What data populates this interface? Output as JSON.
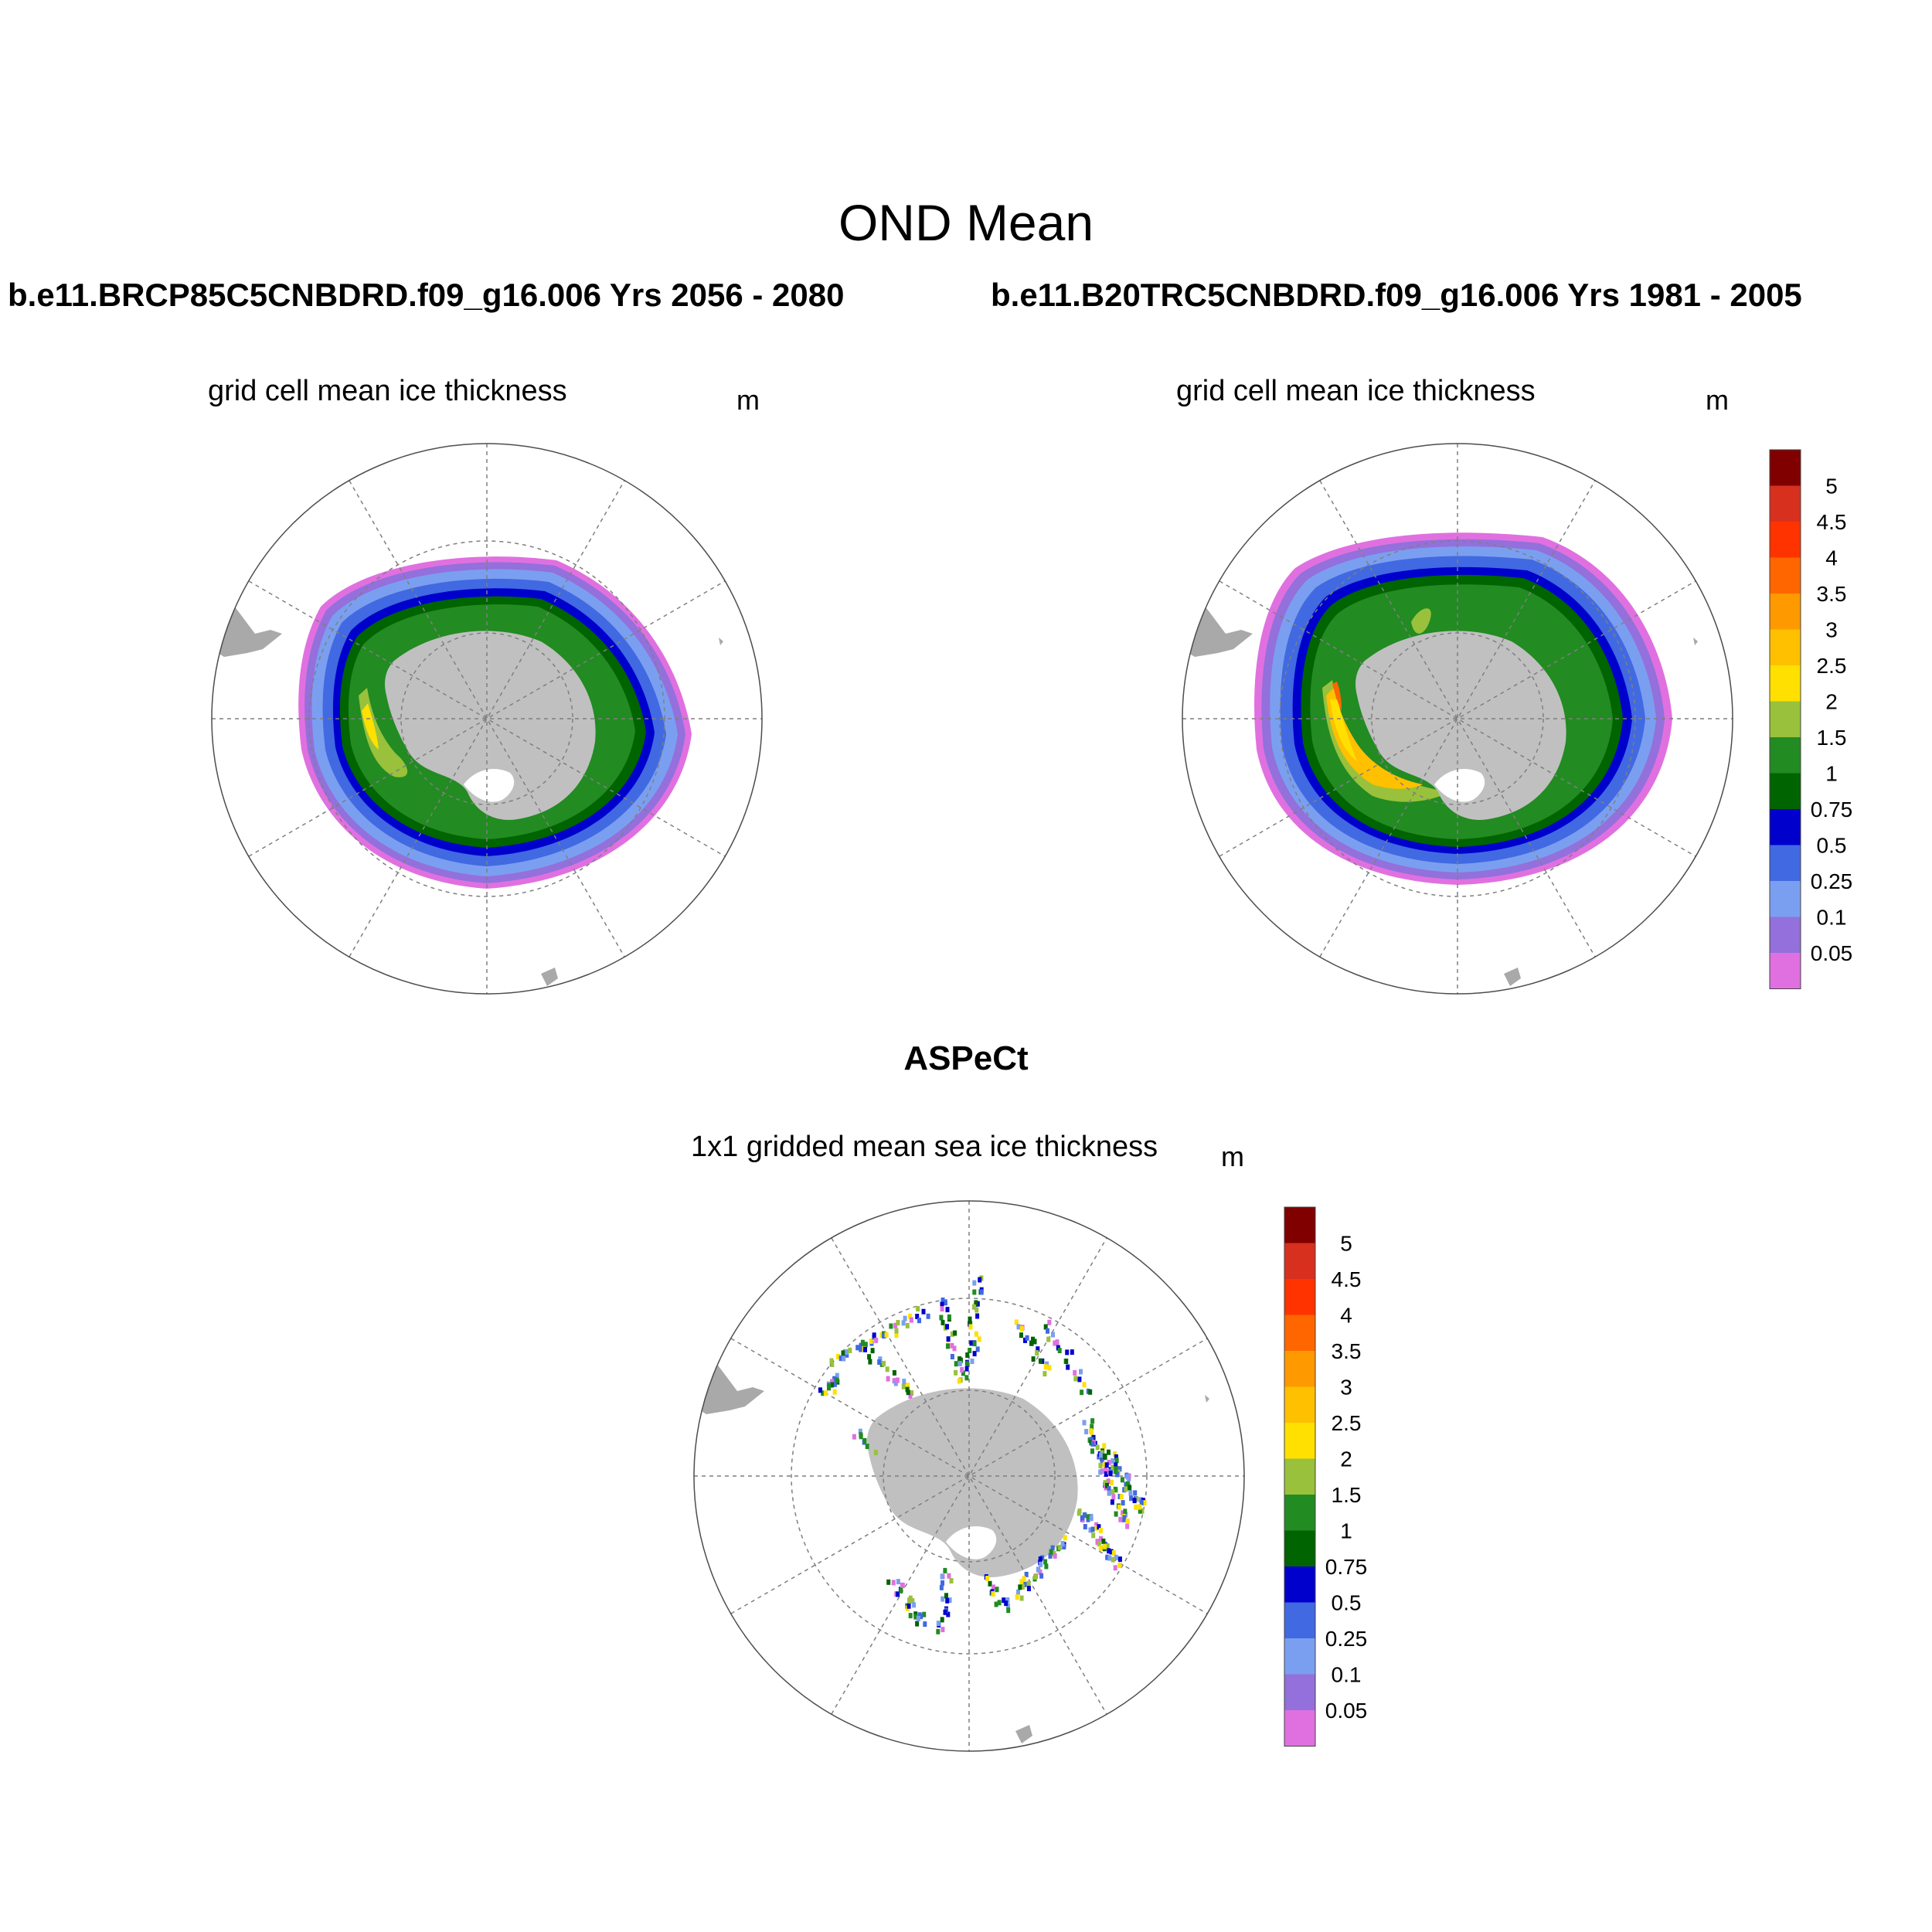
{
  "figure": {
    "title": "OND Mean",
    "case_left_title": "b.e11.BRCP85C5CNBDRD.f09_g16.006  Yrs 2056 - 2080",
    "case_right_title": "b.e11.B20TRC5CNBDRD.f09_g16.006  Yrs 1981 - 2005",
    "obs_title": "ASPeCt"
  },
  "panels": {
    "rcp85": {
      "title": "grid cell mean ice thickness",
      "units": "m"
    },
    "hist": {
      "title": "grid cell mean ice thickness",
      "units": "m"
    },
    "obs": {
      "title": "1x1 gridded mean sea ice thickness",
      "units": "m"
    }
  },
  "colorbar": {
    "labels": [
      "5",
      "4.5",
      "4",
      "3.5",
      "3",
      "2.5",
      "2",
      "1.5",
      "1",
      "0.75",
      "0.5",
      "0.25",
      "0.1",
      "0.05"
    ],
    "colors": [
      "#800000",
      "#d7301f",
      "#ff3300",
      "#ff6600",
      "#ff9900",
      "#ffc000",
      "#ffe000",
      "#99c13c",
      "#228b22",
      "#006400",
      "#0000cd",
      "#4169e1",
      "#7b9ff0",
      "#9370db",
      "#e070e0"
    ]
  },
  "chart_data": [
    {
      "type": "heatmap",
      "projection": "south polar stereographic",
      "title": "grid cell mean ice thickness",
      "case": "b.e11.BRCP85C5CNBDRD.f09_g16.006  Yrs 2056 - 2080",
      "units": "m",
      "levels": [
        0.05,
        0.1,
        0.25,
        0.5,
        0.75,
        1,
        1.5,
        2,
        2.5,
        3,
        3.5,
        4,
        4.5,
        5
      ]
    },
    {
      "type": "heatmap",
      "projection": "south polar stereographic",
      "title": "grid cell mean ice thickness",
      "case": "b.e11.B20TRC5CNBDRD.f09_g16.006  Yrs 1981 - 2005",
      "units": "m",
      "levels": [
        0.05,
        0.1,
        0.25,
        0.5,
        0.75,
        1,
        1.5,
        2,
        2.5,
        3,
        3.5,
        4,
        4.5,
        5
      ]
    },
    {
      "type": "heatmap",
      "projection": "south polar stereographic",
      "title": "1x1 gridded mean sea ice thickness",
      "case": "ASPeCt",
      "units": "m",
      "levels": [
        0.05,
        0.1,
        0.25,
        0.5,
        0.75,
        1,
        1.5,
        2,
        2.5,
        3,
        3.5,
        4,
        4.5,
        5
      ]
    }
  ]
}
